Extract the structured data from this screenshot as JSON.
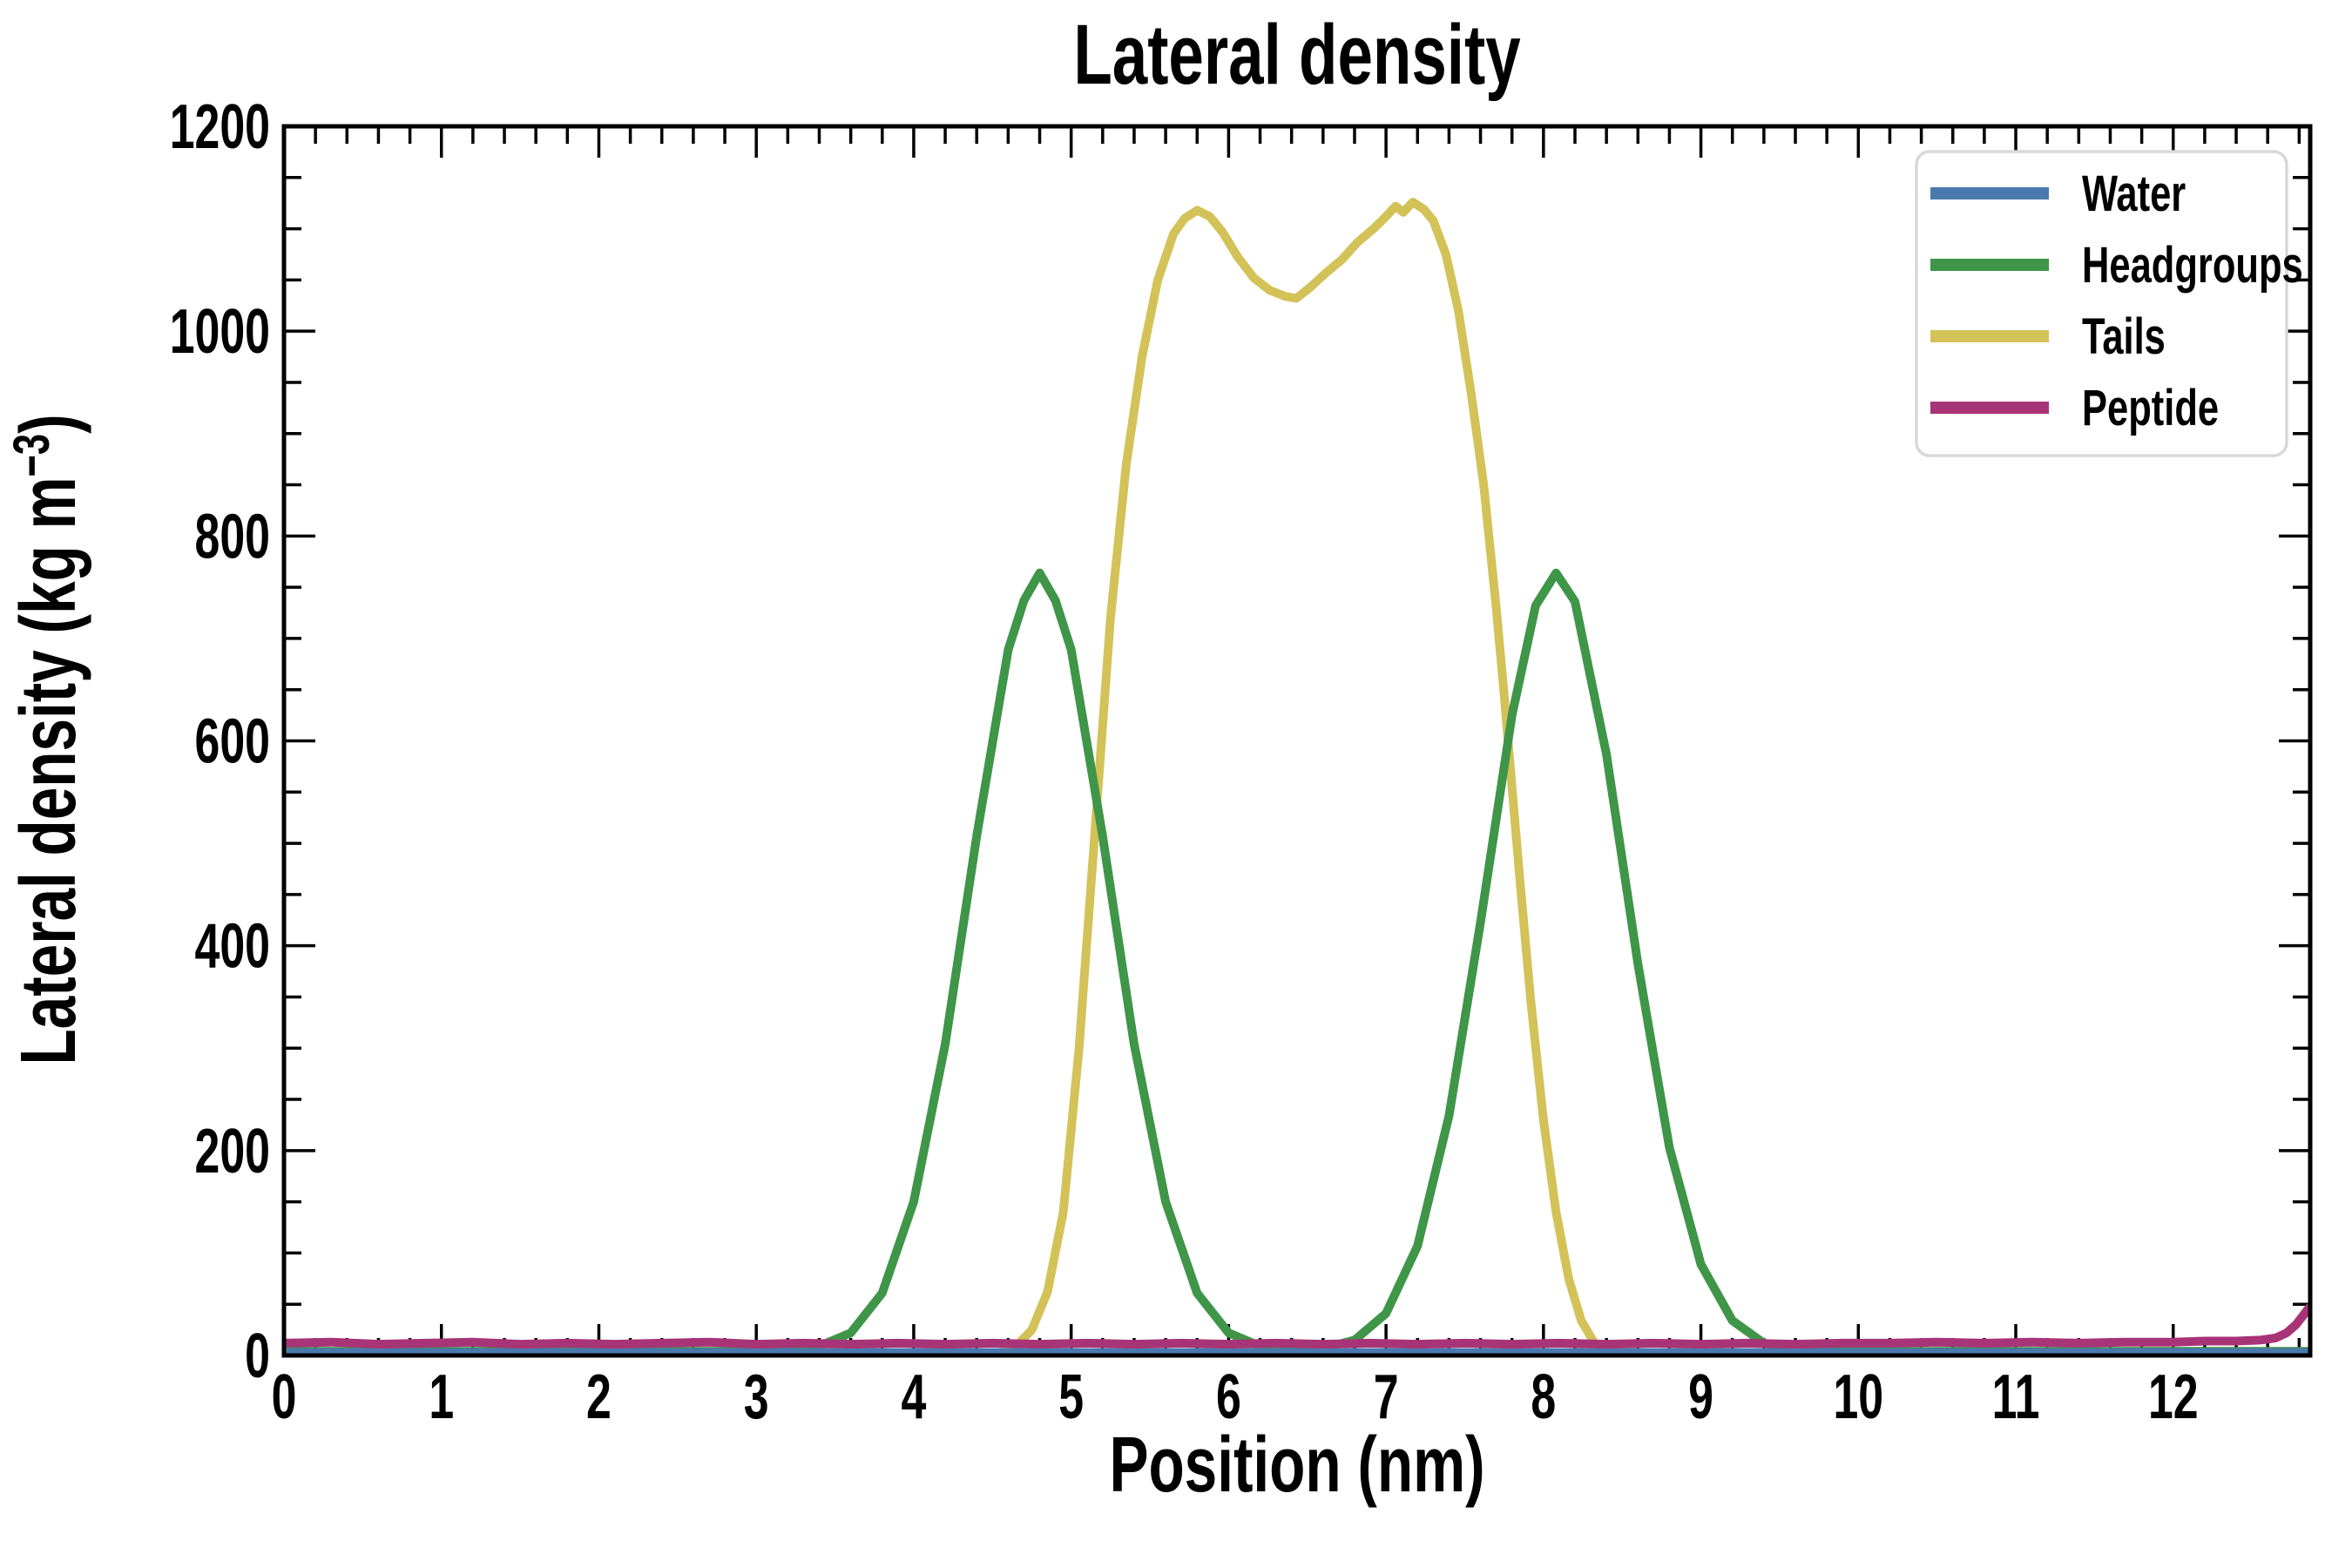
{
  "chart_data": {
    "type": "line",
    "title": "Lateral density",
    "xlabel": "Position (nm)",
    "ylabel": "Lateral density (kg m⁻³)",
    "ylabel_parts": {
      "main": "Lateral density (kg m",
      "sup": "−3",
      "close": ")"
    },
    "xlim": [
      0,
      12.87
    ],
    "ylim": [
      0,
      1200
    ],
    "grid": false,
    "background_color": "#ffffff",
    "spine_color": "#000000",
    "x_tick_labels": [
      "0",
      "1",
      "2",
      "3",
      "4",
      "5",
      "6",
      "7",
      "8",
      "9",
      "10",
      "11",
      "12"
    ],
    "x_major_ticks": [
      0,
      1,
      2,
      3,
      4,
      5,
      6,
      7,
      8,
      9,
      10,
      11,
      12
    ],
    "x_minor_step": 0.2,
    "y_tick_labels": [
      "0",
      "200",
      "400",
      "600",
      "800",
      "1000",
      "1200"
    ],
    "y_major_ticks": [
      0,
      200,
      400,
      600,
      800,
      1000,
      1200
    ],
    "y_minor_step": 50,
    "legend": {
      "position": "upper right",
      "border_color": "#d8d8d8",
      "fill_color": "#ffffff",
      "entries": [
        {
          "label": "Water",
          "color": "#4a7aad"
        },
        {
          "label": "Headgroups",
          "color": "#3f9548"
        },
        {
          "label": "Tails",
          "color": "#d3c258"
        },
        {
          "label": "Peptide",
          "color": "#a83478"
        }
      ]
    },
    "series": [
      {
        "name": "Tails",
        "color": "#d3c258",
        "linewidth": 10,
        "points": [
          [
            0,
            0
          ],
          [
            4.3,
            0
          ],
          [
            4.45,
            1
          ],
          [
            4.55,
            3
          ],
          [
            4.65,
            9
          ],
          [
            4.75,
            25
          ],
          [
            4.85,
            62
          ],
          [
            4.95,
            140
          ],
          [
            5.05,
            300
          ],
          [
            5.15,
            510
          ],
          [
            5.25,
            720
          ],
          [
            5.35,
            870
          ],
          [
            5.45,
            975
          ],
          [
            5.55,
            1050
          ],
          [
            5.65,
            1095
          ],
          [
            5.72,
            1110
          ],
          [
            5.8,
            1118
          ],
          [
            5.88,
            1112
          ],
          [
            5.96,
            1097
          ],
          [
            6.06,
            1072
          ],
          [
            6.16,
            1052
          ],
          [
            6.26,
            1040
          ],
          [
            6.36,
            1034
          ],
          [
            6.43,
            1032
          ],
          [
            6.52,
            1043
          ],
          [
            6.62,
            1057
          ],
          [
            6.72,
            1070
          ],
          [
            6.82,
            1087
          ],
          [
            6.92,
            1100
          ],
          [
            7.0,
            1112
          ],
          [
            7.06,
            1122
          ],
          [
            7.11,
            1116
          ],
          [
            7.17,
            1126
          ],
          [
            7.24,
            1119
          ],
          [
            7.3,
            1108
          ],
          [
            7.38,
            1075
          ],
          [
            7.46,
            1020
          ],
          [
            7.54,
            940
          ],
          [
            7.62,
            850
          ],
          [
            7.7,
            730
          ],
          [
            7.75,
            645
          ],
          [
            7.8,
            555
          ],
          [
            7.85,
            465
          ],
          [
            7.92,
            345
          ],
          [
            8.0,
            230
          ],
          [
            8.08,
            140
          ],
          [
            8.16,
            75
          ],
          [
            8.24,
            34
          ],
          [
            8.32,
            13
          ],
          [
            8.4,
            5
          ],
          [
            8.5,
            1
          ],
          [
            8.6,
            0
          ],
          [
            12.87,
            0
          ]
        ]
      },
      {
        "name": "Headgroups",
        "color": "#3f9548",
        "linewidth": 10,
        "points": [
          [
            0,
            4
          ],
          [
            1,
            4
          ],
          [
            2,
            4
          ],
          [
            3,
            4
          ],
          [
            3.2,
            5
          ],
          [
            3.4,
            9
          ],
          [
            3.6,
            22
          ],
          [
            3.8,
            61
          ],
          [
            4.0,
            150
          ],
          [
            4.2,
            304
          ],
          [
            4.4,
            507
          ],
          [
            4.6,
            689
          ],
          [
            4.7,
            737
          ],
          [
            4.8,
            764
          ],
          [
            4.9,
            737
          ],
          [
            5.0,
            689
          ],
          [
            5.2,
            507
          ],
          [
            5.4,
            304
          ],
          [
            5.6,
            150
          ],
          [
            5.8,
            61
          ],
          [
            6.0,
            22
          ],
          [
            6.2,
            9
          ],
          [
            6.4,
            6
          ],
          [
            6.6,
            7
          ],
          [
            6.8,
            15
          ],
          [
            7.0,
            41
          ],
          [
            7.2,
            107
          ],
          [
            7.4,
            234
          ],
          [
            7.6,
            423
          ],
          [
            7.8,
            625
          ],
          [
            7.95,
            732
          ],
          [
            8.08,
            764
          ],
          [
            8.2,
            736
          ],
          [
            8.4,
            587
          ],
          [
            8.6,
            382
          ],
          [
            8.8,
            203
          ],
          [
            9.0,
            89
          ],
          [
            9.2,
            34
          ],
          [
            9.4,
            12
          ],
          [
            9.6,
            6
          ],
          [
            9.8,
            4
          ],
          [
            10.5,
            4
          ],
          [
            11.5,
            4
          ],
          [
            12.87,
            4
          ]
        ]
      },
      {
        "name": "Water",
        "color": "#4a7aad",
        "linewidth": 12,
        "points": [
          [
            0,
            2
          ],
          [
            12.87,
            2
          ]
        ]
      },
      {
        "name": "Peptide",
        "color": "#a83478",
        "linewidth": 10,
        "points": [
          [
            0,
            12
          ],
          [
            0.3,
            13
          ],
          [
            0.6,
            11
          ],
          [
            0.9,
            12
          ],
          [
            1.2,
            13
          ],
          [
            1.5,
            11
          ],
          [
            1.8,
            12
          ],
          [
            2.1,
            11
          ],
          [
            2.4,
            12
          ],
          [
            2.7,
            13
          ],
          [
            3.0,
            11
          ],
          [
            3.3,
            12
          ],
          [
            3.6,
            11
          ],
          [
            3.9,
            12
          ],
          [
            4.2,
            11
          ],
          [
            4.5,
            12
          ],
          [
            4.8,
            11
          ],
          [
            5.1,
            12
          ],
          [
            5.4,
            11
          ],
          [
            5.7,
            12
          ],
          [
            6.0,
            11
          ],
          [
            6.3,
            12
          ],
          [
            6.6,
            11
          ],
          [
            6.9,
            12
          ],
          [
            7.2,
            11
          ],
          [
            7.5,
            12
          ],
          [
            7.8,
            11
          ],
          [
            8.1,
            12
          ],
          [
            8.4,
            11
          ],
          [
            8.7,
            12
          ],
          [
            9.0,
            11
          ],
          [
            9.3,
            12
          ],
          [
            9.6,
            11
          ],
          [
            9.9,
            12
          ],
          [
            10.2,
            12
          ],
          [
            10.5,
            13
          ],
          [
            10.8,
            12
          ],
          [
            11.1,
            13
          ],
          [
            11.4,
            12
          ],
          [
            11.7,
            13
          ],
          [
            12.0,
            13
          ],
          [
            12.2,
            14
          ],
          [
            12.4,
            14
          ],
          [
            12.55,
            15
          ],
          [
            12.65,
            17
          ],
          [
            12.72,
            22
          ],
          [
            12.78,
            30
          ],
          [
            12.83,
            40
          ],
          [
            12.87,
            48
          ]
        ]
      }
    ]
  }
}
